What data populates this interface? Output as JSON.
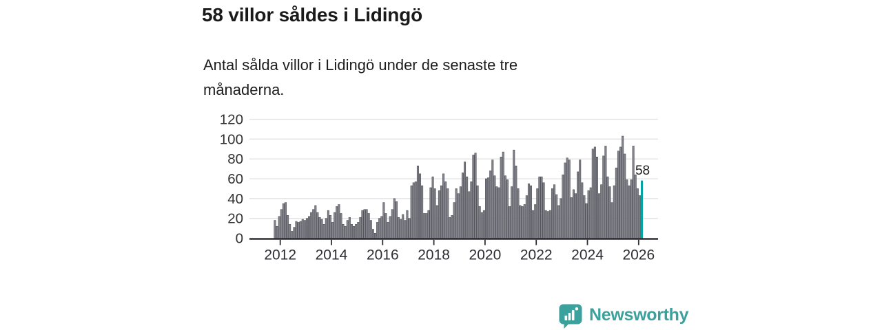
{
  "header": {
    "title": "58 villor såldes i Lidingö",
    "subtitle": "Antal sålda villor i Lidingö under de senaste tre månaderna."
  },
  "footer": {
    "brand_name": "Newsworthy",
    "brand_color": "#3aa19d",
    "logo_icon": "speech-bubble-bar-chart-icon"
  },
  "chart_data": {
    "type": "bar",
    "title": "58 villor såldes i Lidingö",
    "subtitle": "Antal sålda villor i Lidingö under de senaste tre månaderna.",
    "x_unit": "month",
    "x_start": "2011-11",
    "x_end": "2026-03",
    "x_tick_labels": [
      "2012",
      "2014",
      "2016",
      "2018",
      "2020",
      "2022",
      "2024",
      "2026"
    ],
    "y_ticks": [
      0,
      20,
      40,
      60,
      80,
      100,
      120
    ],
    "ylim": [
      0,
      120
    ],
    "grid": true,
    "legend": "none",
    "bar_color": "#84848c",
    "bar_border_color": "#46464e",
    "grid_color": "#e3e3e6",
    "axis_color": "#2d2d33",
    "tick_label_color": "#333333",
    "highlight_color": "#00a5a1",
    "highlight": {
      "index": 172,
      "value": 58,
      "label": "58",
      "period": "2026-03"
    },
    "values": [
      18,
      12,
      22,
      29,
      35,
      36,
      23,
      14,
      7,
      11,
      17,
      16,
      17,
      19,
      18,
      20,
      22,
      26,
      29,
      33,
      26,
      21,
      19,
      14,
      20,
      28,
      23,
      16,
      26,
      32,
      34,
      25,
      14,
      12,
      18,
      21,
      14,
      12,
      14,
      16,
      21,
      28,
      29,
      29,
      25,
      18,
      9,
      5,
      16,
      20,
      22,
      36,
      25,
      16,
      22,
      29,
      40,
      37,
      21,
      19,
      24,
      18,
      28,
      20,
      53,
      56,
      57,
      73,
      65,
      53,
      25,
      25,
      28,
      51,
      62,
      50,
      33,
      48,
      53,
      65,
      57,
      50,
      21,
      23,
      36,
      50,
      45,
      52,
      66,
      77,
      62,
      47,
      57,
      84,
      86,
      53,
      32,
      26,
      28,
      60,
      61,
      68,
      79,
      63,
      52,
      51,
      82,
      87,
      63,
      59,
      32,
      52,
      89,
      73,
      50,
      33,
      32,
      34,
      43,
      55,
      53,
      28,
      34,
      50,
      62,
      62,
      56,
      28,
      27,
      28,
      50,
      54,
      44,
      33,
      40,
      64,
      76,
      81,
      79,
      41,
      49,
      45,
      67,
      79,
      56,
      43,
      35,
      48,
      51,
      90,
      92,
      82,
      45,
      54,
      83,
      93,
      62,
      52,
      36,
      53,
      71,
      88,
      92,
      103,
      85,
      59,
      53,
      59,
      93,
      64,
      50,
      43,
      58
    ]
  }
}
